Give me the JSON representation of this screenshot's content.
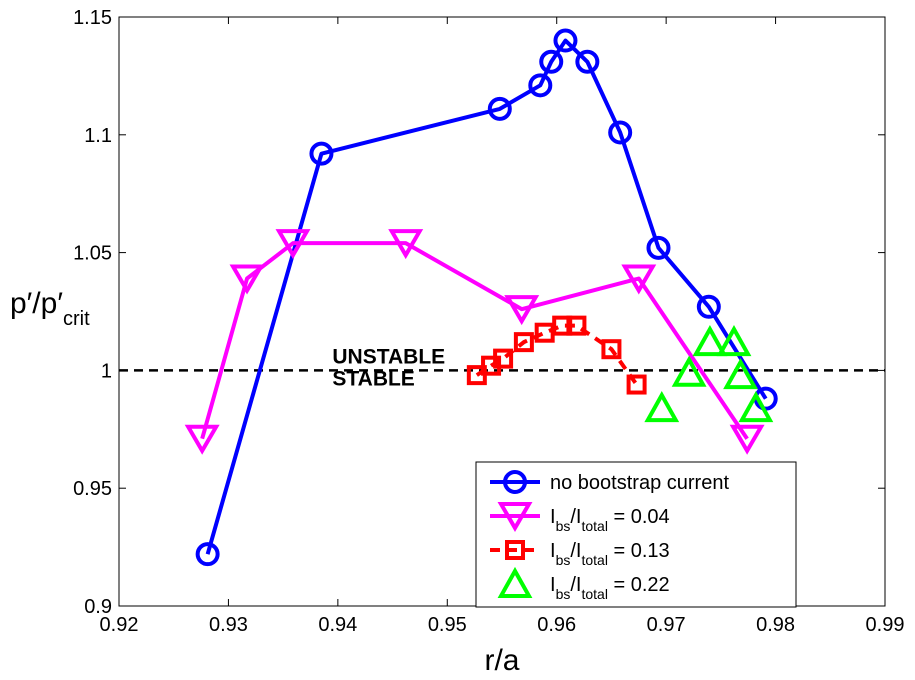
{
  "chart_data": {
    "type": "line",
    "xlabel": "r/a",
    "ylabel": {
      "main": "p′/p′",
      "sub": "crit"
    },
    "xlim": [
      0.92,
      0.99
    ],
    "ylim": [
      0.9,
      1.15
    ],
    "xticks": [
      0.92,
      0.93,
      0.94,
      0.95,
      0.96,
      0.97,
      0.98,
      0.99
    ],
    "xtick_labels": [
      "0.92",
      "0.93",
      "0.94",
      "0.95",
      "0.96",
      "0.97",
      "0.98",
      "0.99"
    ],
    "yticks": [
      0.9,
      0.95,
      1.0,
      1.05,
      1.1,
      1.15
    ],
    "ytick_labels": [
      "0.9",
      "0.95",
      "1",
      "1.05",
      "1.1",
      "1.15"
    ],
    "grid": false,
    "legend_position": "bottom-right",
    "reference_line": {
      "y": 1.0,
      "style": "dashed",
      "color": "#000000"
    },
    "annotations": [
      {
        "text": "UNSTABLE",
        "x": 0.9395,
        "y": 1.003
      },
      {
        "text": "STABLE",
        "x": 0.9395,
        "y": 0.9935
      }
    ],
    "series": [
      {
        "name": "no bootstrap current",
        "color": "#0000ff",
        "marker": "circle",
        "line": "solid",
        "x": [
          0.9281,
          0.9385,
          0.9548,
          0.9585,
          0.9595,
          0.9608,
          0.9628,
          0.9658,
          0.9693,
          0.9739,
          0.9791
        ],
        "y": [
          0.922,
          1.092,
          1.111,
          1.121,
          1.131,
          1.14,
          1.131,
          1.101,
          1.052,
          1.027,
          0.988
        ]
      },
      {
        "name": "I_bs/I_total = 0.04",
        "legend": {
          "main": "I",
          "sub1": "bs",
          "mid": "/I",
          "sub2": "total",
          "rest": " = 0.04"
        },
        "color": "#ff00ff",
        "marker": "triangle-down",
        "line": "solid",
        "x": [
          0.9276,
          0.9317,
          0.9359,
          0.9462,
          0.9568,
          0.9675,
          0.9774
        ],
        "y": [
          0.971,
          1.039,
          1.054,
          1.054,
          1.026,
          1.039,
          0.971
        ]
      },
      {
        "name": "I_bs/I_total = 0.13",
        "legend": {
          "main": "I",
          "sub1": "bs",
          "mid": "/I",
          "sub2": "total",
          "rest": " = 0.13"
        },
        "color": "#ff0000",
        "marker": "square",
        "line": "dashed",
        "x": [
          0.9527,
          0.954,
          0.9551,
          0.957,
          0.9589,
          0.9605,
          0.9618,
          0.965,
          0.9673
        ],
        "y": [
          0.998,
          1.002,
          1.005,
          1.012,
          1.016,
          1.019,
          1.019,
          1.009,
          0.994
        ]
      },
      {
        "name": "I_bs/I_total = 0.22",
        "legend": {
          "main": "I",
          "sub1": "bs",
          "mid": "/I",
          "sub2": "total",
          "rest": " = 0.22"
        },
        "color": "#00ff00",
        "marker": "triangle-up",
        "line": "none",
        "x": [
          0.9696,
          0.9721,
          0.974,
          0.9762,
          0.9768,
          0.9782
        ],
        "y": [
          0.984,
          0.999,
          1.012,
          1.012,
          0.998,
          0.984
        ]
      }
    ]
  }
}
